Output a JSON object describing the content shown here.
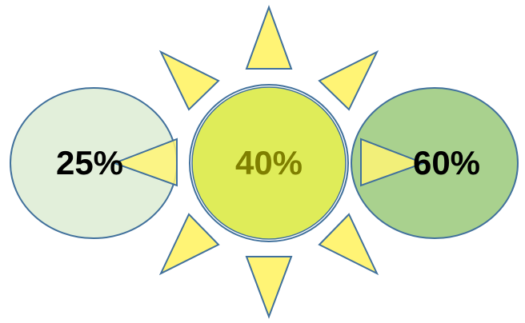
{
  "diagram": {
    "circles": [
      {
        "id": "left",
        "label": "25%",
        "fill": "#e2efda",
        "stroke": "#41719c",
        "text_color": "#000000"
      },
      {
        "id": "center",
        "label": "40%",
        "fill": "#dfec59",
        "stroke": "#41719c",
        "text_color": "#7f7f00"
      },
      {
        "id": "right",
        "label": "60%",
        "fill": "#a9d18e",
        "stroke": "#41719c",
        "text_color": "#000000"
      }
    ],
    "rays": {
      "fill": "#fff475",
      "stroke": "#41719c"
    }
  }
}
